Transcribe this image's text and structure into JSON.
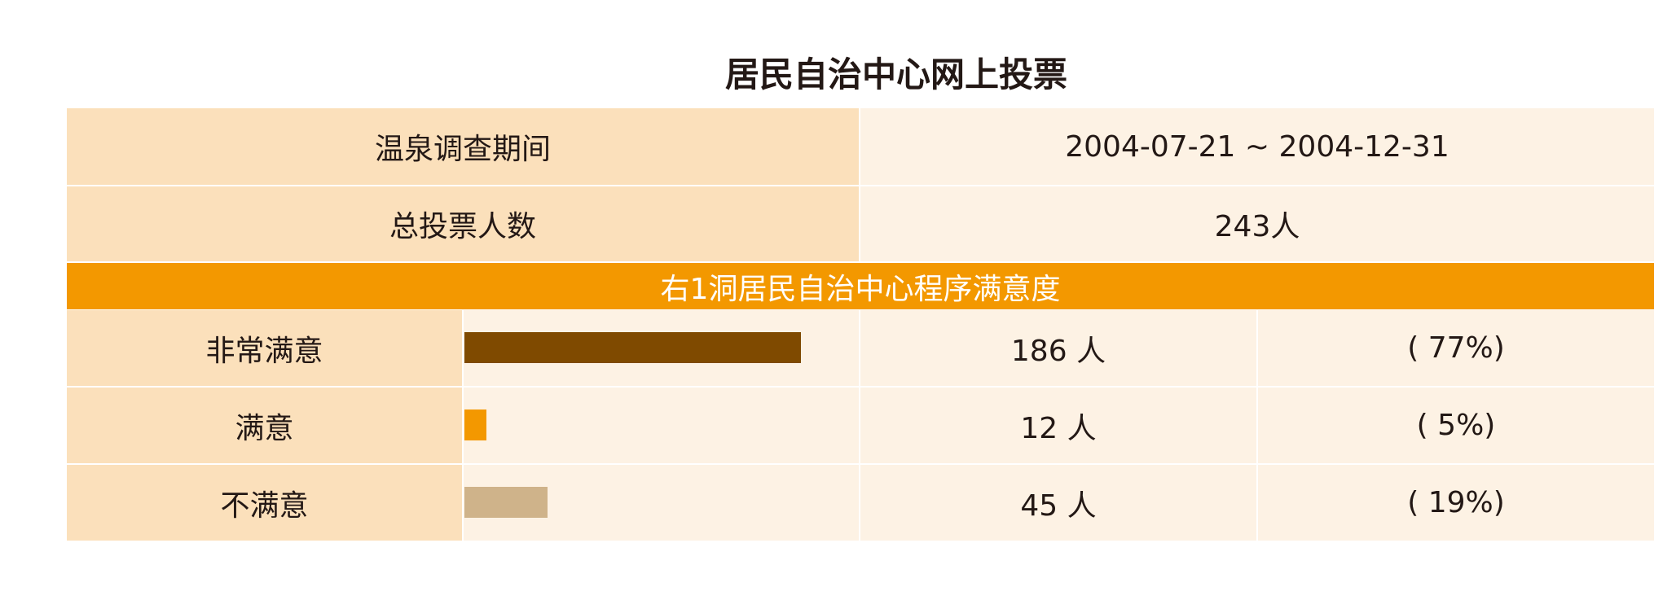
{
  "title": "居民自治中心网上投票",
  "survey": {
    "period_label": "温泉调查期间",
    "period_value": "2004-07-21 ~ 2004-12-31",
    "total_label": "总投票人数",
    "total_value": "243人"
  },
  "section_title": "右1洞居民自治中心程序满意度",
  "chart_data": {
    "type": "bar",
    "categories": [
      "非常满意",
      "满意",
      "不满意"
    ],
    "values": [
      186,
      12,
      45
    ],
    "count_labels": [
      "186 人",
      "12 人",
      "45 人"
    ],
    "percent_labels": [
      "( 77%)",
      "( 5%)",
      "( 19%)"
    ],
    "percents": [
      77,
      5,
      19
    ],
    "colors": [
      "#7f4a00",
      "#f39800",
      "#cfb38a"
    ]
  }
}
